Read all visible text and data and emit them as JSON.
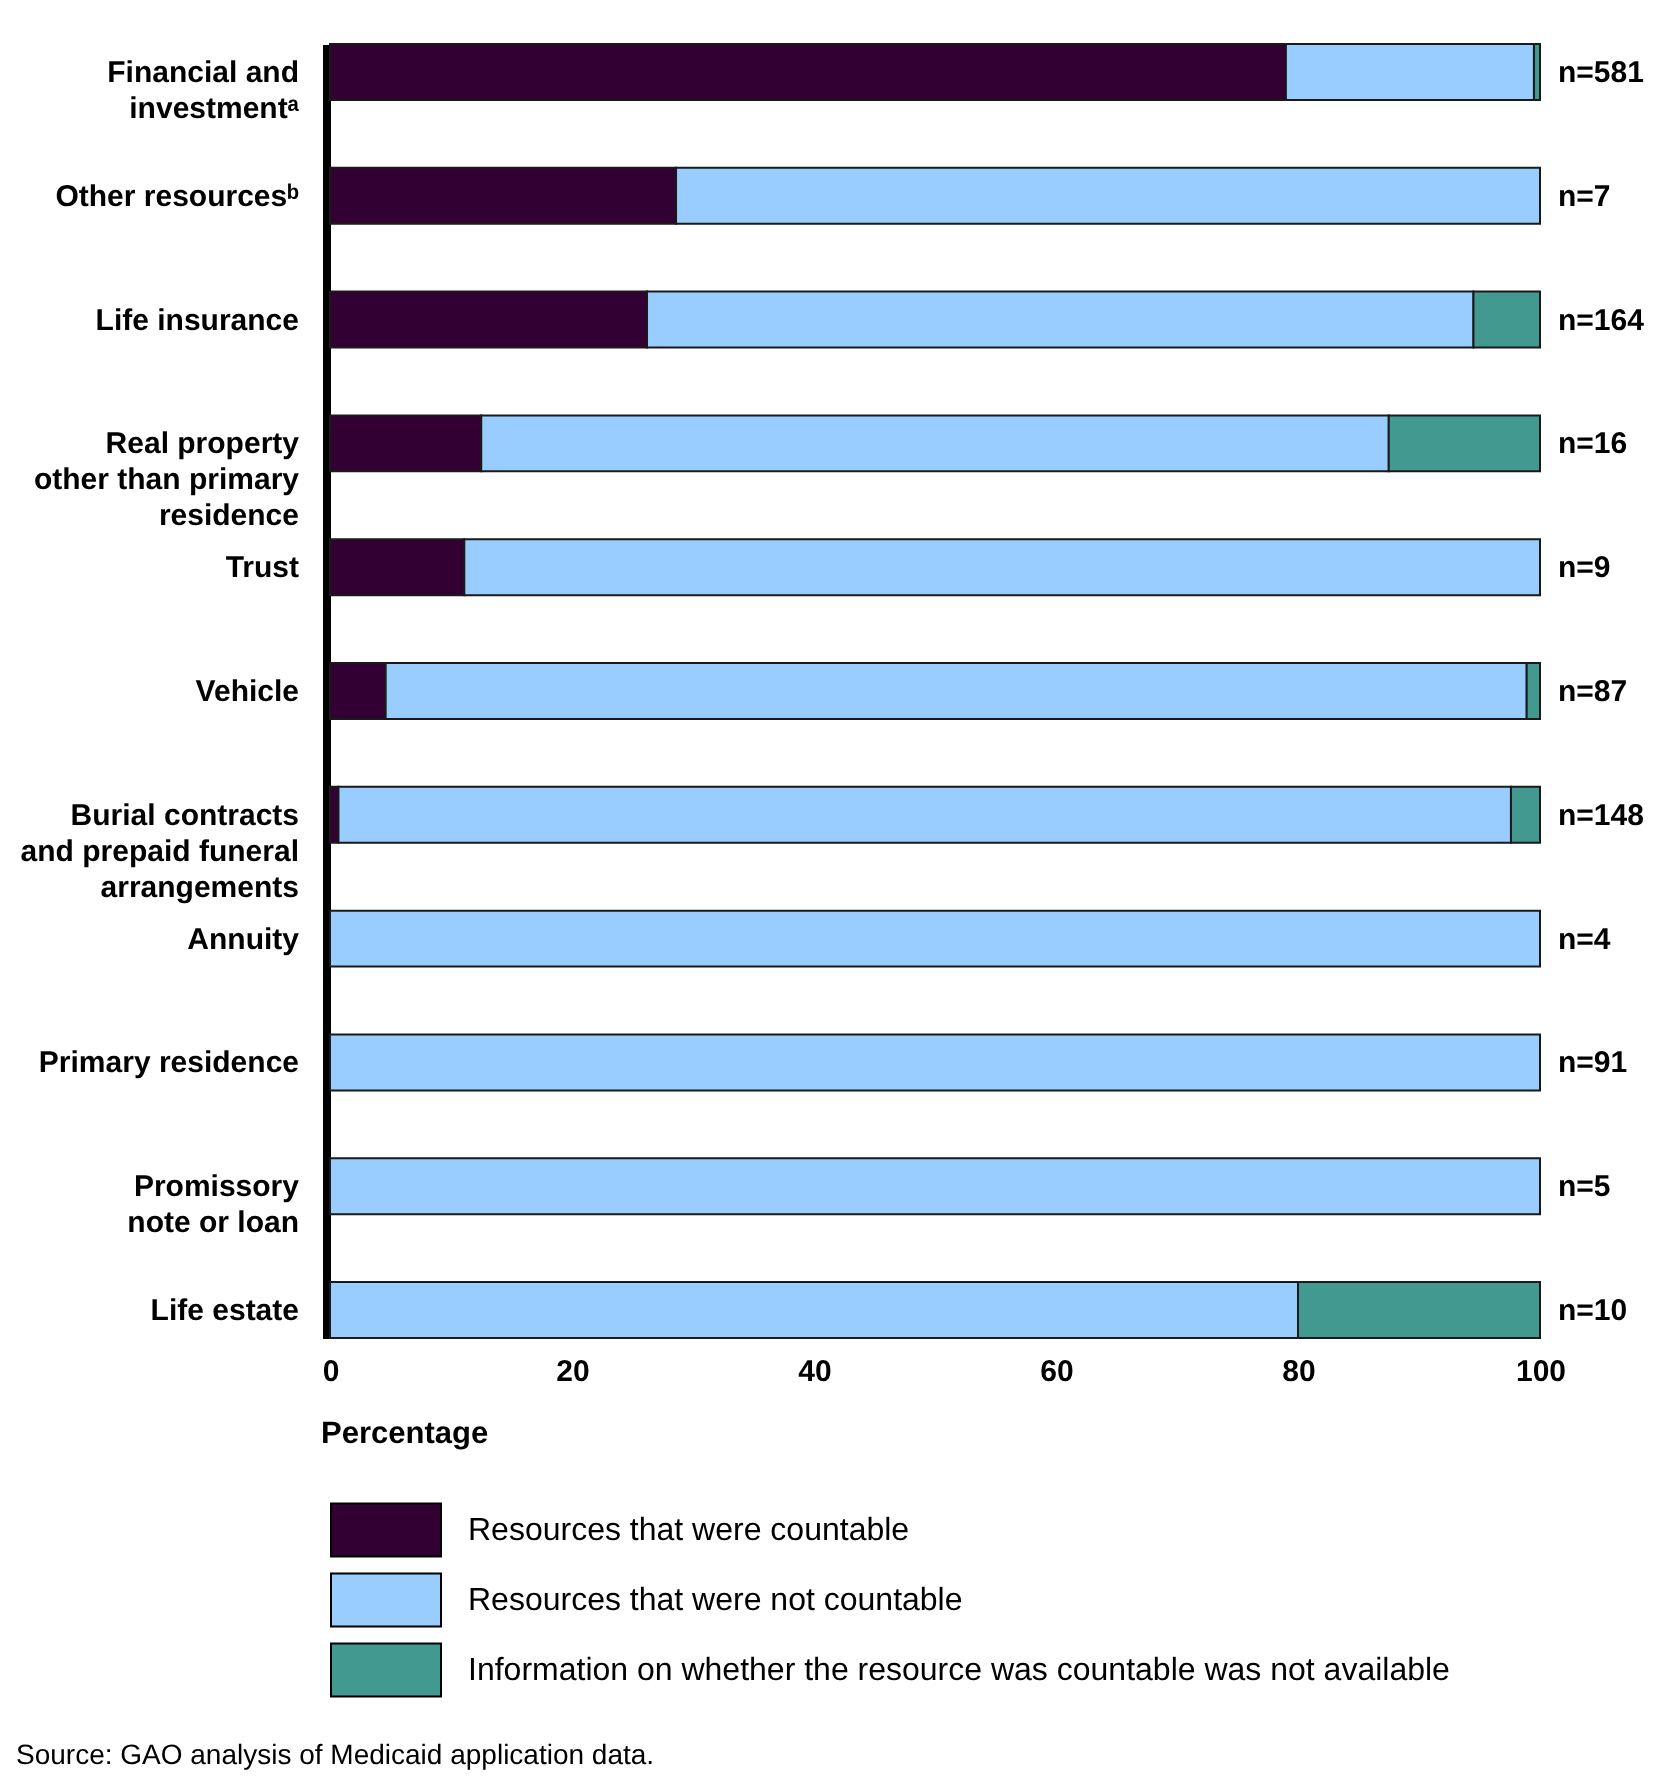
{
  "chart_data": {
    "type": "bar",
    "orientation": "horizontal",
    "stacked": true,
    "categories": [
      "Financial and\ninvestmentᵃ",
      "Other resourcesᵇ",
      "Life insurance",
      "Real property\nother than primary\nresidence",
      "Trust",
      "Vehicle",
      "Burial contracts\nand prepaid funeral\narrangements",
      "Annuity",
      "Primary residence",
      "Promissory\nnote or loan",
      "Life estate"
    ],
    "series": [
      {
        "name": "Resources that were countable",
        "color": "#330033",
        "values": [
          79,
          28.6,
          26.2,
          12.5,
          11.1,
          4.6,
          0.7,
          0,
          0,
          0,
          0
        ]
      },
      {
        "name": "Resources that were not countable",
        "color": "#99ccff",
        "values": [
          20.5,
          71.4,
          68.3,
          75,
          88.9,
          94.3,
          96.9,
          100,
          100,
          100,
          80
        ]
      },
      {
        "name": "Information on whether the resource was countable was not available",
        "color": "#419990",
        "values": [
          0.5,
          0,
          5.5,
          12.5,
          0,
          1.1,
          2.4,
          0,
          0,
          0,
          20
        ]
      }
    ],
    "xlabel": "Percentage",
    "xlim": [
      0,
      100
    ],
    "xticks": [
      0,
      20,
      40,
      60,
      80,
      100
    ],
    "grid": false,
    "legend": "bottom",
    "annotations": [
      "n=581",
      "n=7",
      "n=164",
      "n=16",
      "n=9",
      "n=87",
      "n=148",
      "n=4",
      "n=91",
      "n=5",
      "n=10",
      "Source: GAO analysis of Medicaid application data."
    ]
  }
}
